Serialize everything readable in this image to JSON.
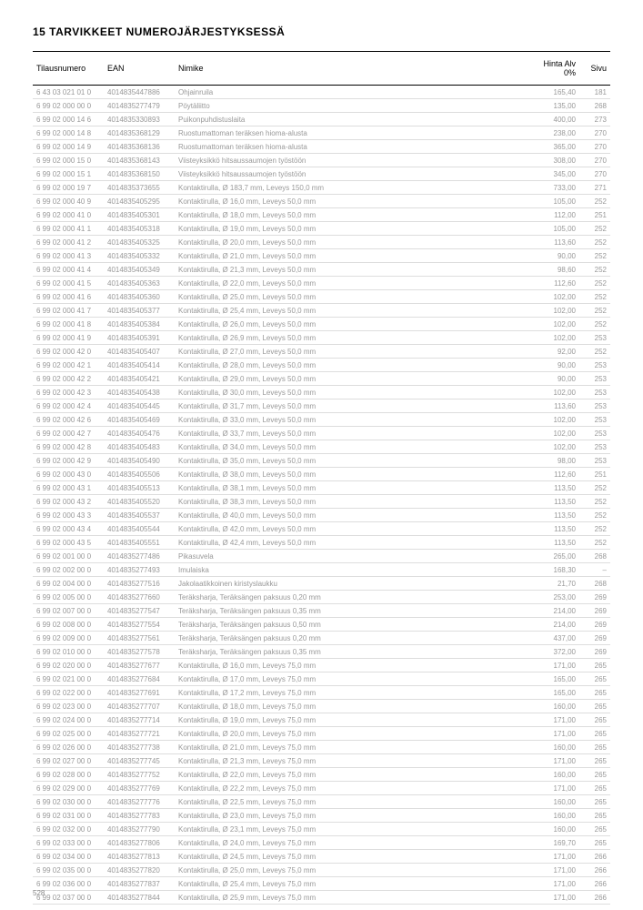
{
  "header": {
    "title": "15   TARVIKKEET NUMEROJÄRJESTYKSESSÄ"
  },
  "columns": {
    "tilaus": "Tilausnumero",
    "ean": "EAN",
    "nimike": "Nimike",
    "hinta": "Hinta Alv 0%",
    "sivu": "Sivu"
  },
  "rows": [
    {
      "t": "6 43 03 021 01 0",
      "e": "4014835447886",
      "n": "Ohjainruila",
      "h": "165,40",
      "s": "181"
    },
    {
      "t": "6 99 02 000 00 0",
      "e": "4014835277479",
      "n": "Pöytäliitto",
      "h": "135,00",
      "s": "268"
    },
    {
      "t": "6 99 02 000 14 6",
      "e": "4014835330893",
      "n": "Puikonpuhdistuslaita",
      "h": "400,00",
      "s": "273"
    },
    {
      "t": "6 99 02 000 14 8",
      "e": "4014835368129",
      "n": "Ruostumattoman teräksen hioma-alusta",
      "h": "238,00",
      "s": "270"
    },
    {
      "t": "6 99 02 000 14 9",
      "e": "4014835368136",
      "n": "Ruostumattoman teräksen hioma-alusta",
      "h": "365,00",
      "s": "270"
    },
    {
      "t": "6 99 02 000 15 0",
      "e": "4014835368143",
      "n": "Viisteyksikkö hitsaussaumojen työstöön",
      "h": "308,00",
      "s": "270"
    },
    {
      "t": "6 99 02 000 15 1",
      "e": "4014835368150",
      "n": "Viisteyksikkö hitsaussaumojen työstöön",
      "h": "345,00",
      "s": "270"
    },
    {
      "t": "6 99 02 000 19 7",
      "e": "4014835373655",
      "n": "Kontaktirulla, Ø 183,7 mm, Leveys 150,0 mm",
      "h": "733,00",
      "s": "271"
    },
    {
      "t": "6 99 02 000 40 9",
      "e": "4014835405295",
      "n": "Kontaktirulla, Ø 16,0 mm, Leveys 50,0 mm",
      "h": "105,00",
      "s": "252"
    },
    {
      "t": "6 99 02 000 41 0",
      "e": "4014835405301",
      "n": "Kontaktirulla, Ø 18,0 mm, Leveys 50,0 mm",
      "h": "112,00",
      "s": "251"
    },
    {
      "t": "6 99 02 000 41 1",
      "e": "4014835405318",
      "n": "Kontaktirulla, Ø 19,0 mm, Leveys 50,0 mm",
      "h": "105,00",
      "s": "252"
    },
    {
      "t": "6 99 02 000 41 2",
      "e": "4014835405325",
      "n": "Kontaktirulla, Ø 20,0 mm, Leveys 50,0 mm",
      "h": "113,60",
      "s": "252"
    },
    {
      "t": "6 99 02 000 41 3",
      "e": "4014835405332",
      "n": "Kontaktirulla, Ø 21,0 mm, Leveys 50,0 mm",
      "h": "90,00",
      "s": "252"
    },
    {
      "t": "6 99 02 000 41 4",
      "e": "4014835405349",
      "n": "Kontaktirulla, Ø 21,3 mm, Leveys 50,0 mm",
      "h": "98,60",
      "s": "252"
    },
    {
      "t": "6 99 02 000 41 5",
      "e": "4014835405363",
      "n": "Kontaktirulla, Ø 22,0 mm, Leveys 50,0 mm",
      "h": "112,60",
      "s": "252"
    },
    {
      "t": "6 99 02 000 41 6",
      "e": "4014835405360",
      "n": "Kontaktirulla, Ø 25,0 mm, Leveys 50,0 mm",
      "h": "102,00",
      "s": "252"
    },
    {
      "t": "6 99 02 000 41 7",
      "e": "4014835405377",
      "n": "Kontaktirulla, Ø 25,4 mm, Leveys 50,0 mm",
      "h": "102,00",
      "s": "252"
    },
    {
      "t": "6 99 02 000 41 8",
      "e": "4014835405384",
      "n": "Kontaktirulla, Ø 26,0 mm, Leveys 50,0 mm",
      "h": "102,00",
      "s": "252"
    },
    {
      "t": "6 99 02 000 41 9",
      "e": "4014835405391",
      "n": "Kontaktirulla, Ø 26,9 mm, Leveys 50,0 mm",
      "h": "102,00",
      "s": "253"
    },
    {
      "t": "6 99 02 000 42 0",
      "e": "4014835405407",
      "n": "Kontaktirulla, Ø 27,0 mm, Leveys 50,0 mm",
      "h": "92,00",
      "s": "252"
    },
    {
      "t": "6 99 02 000 42 1",
      "e": "4014835405414",
      "n": "Kontaktirulla, Ø 28,0 mm, Leveys 50,0 mm",
      "h": "90,00",
      "s": "253"
    },
    {
      "t": "6 99 02 000 42 2",
      "e": "4014835405421",
      "n": "Kontaktirulla, Ø 29,0 mm, Leveys 50,0 mm",
      "h": "90,00",
      "s": "253"
    },
    {
      "t": "6 99 02 000 42 3",
      "e": "4014835405438",
      "n": "Kontaktirulla, Ø 30,0 mm, Leveys 50,0 mm",
      "h": "102,00",
      "s": "253"
    },
    {
      "t": "6 99 02 000 42 4",
      "e": "4014835405445",
      "n": "Kontaktirulla, Ø 31,7 mm, Leveys 50,0 mm",
      "h": "113,60",
      "s": "253"
    },
    {
      "t": "6 99 02 000 42 6",
      "e": "4014835405469",
      "n": "Kontaktirulla, Ø 33,0 mm, Leveys 50,0 mm",
      "h": "102,00",
      "s": "253"
    },
    {
      "t": "6 99 02 000 42 7",
      "e": "4014835405476",
      "n": "Kontaktirulla, Ø 33,7 mm, Leveys 50,0 mm",
      "h": "102,00",
      "s": "253"
    },
    {
      "t": "6 99 02 000 42 8",
      "e": "4014835405483",
      "n": "Kontaktirulla, Ø 34,0 mm, Leveys 50,0 mm",
      "h": "102,00",
      "s": "253"
    },
    {
      "t": "6 99 02 000 42 9",
      "e": "4014835405490",
      "n": "Kontaktirulla, Ø 35,0 mm, Leveys 50,0 mm",
      "h": "98,00",
      "s": "253"
    },
    {
      "t": "6 99 02 000 43 0",
      "e": "4014835405506",
      "n": "Kontaktirulla, Ø 38,0 mm, Leveys 50,0 mm",
      "h": "112,60",
      "s": "251"
    },
    {
      "t": "6 99 02 000 43 1",
      "e": "4014835405513",
      "n": "Kontaktirulla, Ø 38,1 mm, Leveys 50,0 mm",
      "h": "113,50",
      "s": "252"
    },
    {
      "t": "6 99 02 000 43 2",
      "e": "4014835405520",
      "n": "Kontaktirulla, Ø 38,3 mm, Leveys 50,0 mm",
      "h": "113,50",
      "s": "252"
    },
    {
      "t": "6 99 02 000 43 3",
      "e": "4014835405537",
      "n": "Kontaktirulla, Ø 40,0 mm, Leveys 50,0 mm",
      "h": "113,50",
      "s": "252"
    },
    {
      "t": "6 99 02 000 43 4",
      "e": "4014835405544",
      "n": "Kontaktirulla, Ø 42,0 mm, Leveys 50,0 mm",
      "h": "113,50",
      "s": "252"
    },
    {
      "t": "6 99 02 000 43 5",
      "e": "4014835405551",
      "n": "Kontaktirulla, Ø 42,4 mm, Leveys 50,0 mm",
      "h": "113,50",
      "s": "252"
    },
    {
      "t": "6 99 02 001 00 0",
      "e": "4014835277486",
      "n": "Pikasuvela",
      "h": "265,00",
      "s": "268"
    },
    {
      "t": "6 99 02 002 00 0",
      "e": "4014835277493",
      "n": "Imulaiska",
      "h": "168,30",
      "s": "–"
    },
    {
      "t": "6 99 02 004 00 0",
      "e": "4014835277516",
      "n": "Jakolaatikkoinen kiristyslaukku",
      "h": "21,70",
      "s": "268"
    },
    {
      "t": "6 99 02 005 00 0",
      "e": "4014835277660",
      "n": "Teräksharja, Teräksängen paksuus 0,20 mm",
      "h": "253,00",
      "s": "269"
    },
    {
      "t": "6 99 02 007 00 0",
      "e": "4014835277547",
      "n": "Teräksharja, Teräksängen paksuus 0,35 mm",
      "h": "214,00",
      "s": "269"
    },
    {
      "t": "6 99 02 008 00 0",
      "e": "4014835277554",
      "n": "Teräksharja, Teräksängen paksuus 0,50 mm",
      "h": "214,00",
      "s": "269"
    },
    {
      "t": "6 99 02 009 00 0",
      "e": "4014835277561",
      "n": "Teräksharja, Teräksängen paksuus 0,20 mm",
      "h": "437,00",
      "s": "269"
    },
    {
      "t": "6 99 02 010 00 0",
      "e": "4014835277578",
      "n": "Teräksharja, Teräksängen paksuus 0,35 mm",
      "h": "372,00",
      "s": "269"
    },
    {
      "t": "6 99 02 020 00 0",
      "e": "4014835277677",
      "n": "Kontaktirulla, Ø 16,0 mm, Leveys 75,0 mm",
      "h": "171,00",
      "s": "265"
    },
    {
      "t": "6 99 02 021 00 0",
      "e": "4014835277684",
      "n": "Kontaktirulla, Ø 17,0 mm, Leveys 75,0 mm",
      "h": "165,00",
      "s": "265"
    },
    {
      "t": "6 99 02 022 00 0",
      "e": "4014835277691",
      "n": "Kontaktirulla, Ø 17,2 mm, Leveys 75,0 mm",
      "h": "165,00",
      "s": "265"
    },
    {
      "t": "6 99 02 023 00 0",
      "e": "4014835277707",
      "n": "Kontaktirulla, Ø 18,0 mm, Leveys 75,0 mm",
      "h": "160,00",
      "s": "265"
    },
    {
      "t": "6 99 02 024 00 0",
      "e": "4014835277714",
      "n": "Kontaktirulla, Ø 19,0 mm, Leveys 75,0 mm",
      "h": "171,00",
      "s": "265"
    },
    {
      "t": "6 99 02 025 00 0",
      "e": "4014835277721",
      "n": "Kontaktirulla, Ø 20,0 mm, Leveys 75,0 mm",
      "h": "171,00",
      "s": "265"
    },
    {
      "t": "6 99 02 026 00 0",
      "e": "4014835277738",
      "n": "Kontaktirulla, Ø 21,0 mm, Leveys 75,0 mm",
      "h": "160,00",
      "s": "265"
    },
    {
      "t": "6 99 02 027 00 0",
      "e": "4014835277745",
      "n": "Kontaktirulla, Ø 21,3 mm, Leveys 75,0 mm",
      "h": "171,00",
      "s": "265"
    },
    {
      "t": "6 99 02 028 00 0",
      "e": "4014835277752",
      "n": "Kontaktirulla, Ø 22,0 mm, Leveys 75,0 mm",
      "h": "160,00",
      "s": "265"
    },
    {
      "t": "6 99 02 029 00 0",
      "e": "4014835277769",
      "n": "Kontaktirulla, Ø 22,2 mm, Leveys 75,0 mm",
      "h": "171,00",
      "s": "265"
    },
    {
      "t": "6 99 02 030 00 0",
      "e": "4014835277776",
      "n": "Kontaktirulla, Ø 22,5 mm, Leveys 75,0 mm",
      "h": "160,00",
      "s": "265"
    },
    {
      "t": "6 99 02 031 00 0",
      "e": "4014835277783",
      "n": "Kontaktirulla, Ø 23,0 mm, Leveys 75,0 mm",
      "h": "160,00",
      "s": "265"
    },
    {
      "t": "6 99 02 032 00 0",
      "e": "4014835277790",
      "n": "Kontaktirulla, Ø 23,1 mm, Leveys 75,0 mm",
      "h": "160,00",
      "s": "265"
    },
    {
      "t": "6 99 02 033 00 0",
      "e": "4014835277806",
      "n": "Kontaktirulla, Ø 24,0 mm, Leveys 75,0 mm",
      "h": "169,70",
      "s": "265"
    },
    {
      "t": "6 99 02 034 00 0",
      "e": "4014835277813",
      "n": "Kontaktirulla, Ø 24,5 mm, Leveys 75,0 mm",
      "h": "171,00",
      "s": "266"
    },
    {
      "t": "6 99 02 035 00 0",
      "e": "4014835277820",
      "n": "Kontaktirulla, Ø 25,0 mm, Leveys 75,0 mm",
      "h": "171,00",
      "s": "266"
    },
    {
      "t": "6 99 02 036 00 0",
      "e": "4014835277837",
      "n": "Kontaktirulla, Ø 25,4 mm, Leveys 75,0 mm",
      "h": "171,00",
      "s": "266"
    },
    {
      "t": "6 99 02 037 00 0",
      "e": "4014835277844",
      "n": "Kontaktirulla, Ø 25,9 mm, Leveys 75,0 mm",
      "h": "171,00",
      "s": "266"
    }
  ],
  "footer": {
    "page_number": "528"
  }
}
